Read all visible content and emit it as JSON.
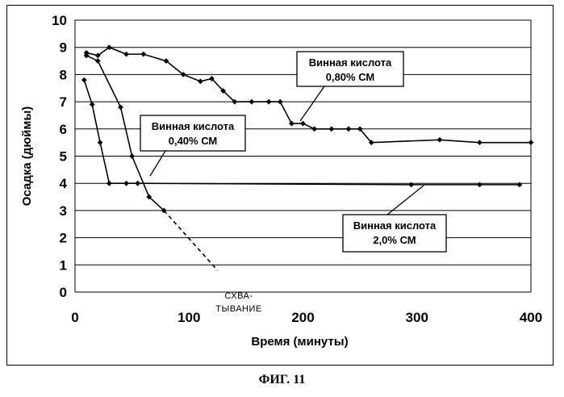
{
  "figure_caption": "ФИГ. 11",
  "chart_data": {
    "type": "line",
    "xlabel": "Время (минуты)",
    "ylabel": "Осадка (дюймы)",
    "xlim": [
      0,
      400
    ],
    "ylim": [
      0,
      10
    ],
    "xticks": [
      0,
      100,
      200,
      300,
      400
    ],
    "yticks": [
      0,
      1,
      2,
      3,
      4,
      5,
      6,
      7,
      8,
      9,
      10
    ],
    "grid": "horizontal",
    "series": [
      {
        "name": "Винная кислота 0,80% СМ",
        "x": [
          10,
          20,
          30,
          45,
          60,
          80,
          95,
          110,
          120,
          130,
          140,
          155,
          170,
          180,
          190,
          200,
          210,
          225,
          240,
          250,
          260,
          320,
          355,
          400
        ],
        "y": [
          8.8,
          8.7,
          9.0,
          8.75,
          8.75,
          8.5,
          8.0,
          7.75,
          7.85,
          7.4,
          7.0,
          7.0,
          7.0,
          7.0,
          6.2,
          6.2,
          6.0,
          6.0,
          6.0,
          6.0,
          5.5,
          5.6,
          5.5,
          5.5
        ]
      },
      {
        "name": "Винная кислота 0,40% СМ",
        "x": [
          10,
          20,
          40,
          50,
          65,
          78
        ],
        "y": [
          8.7,
          8.5,
          6.8,
          5.0,
          3.5,
          3.0
        ]
      },
      {
        "name": "Винная кислота 2,0% СМ",
        "x": [
          8,
          15,
          22,
          30,
          45,
          55,
          295,
          355,
          390
        ],
        "y": [
          7.8,
          6.9,
          5.5,
          4.0,
          4.0,
          4.0,
          3.95,
          3.95,
          3.95
        ]
      }
    ],
    "dashed_extension": {
      "x": [
        78,
        125
      ],
      "y": [
        3.0,
        0.8
      ]
    },
    "callouts": [
      {
        "line1": "Винная кислота",
        "line2": "0,80% СМ"
      },
      {
        "line1": "Винная кислота",
        "line2": "0,40% СМ"
      },
      {
        "line1": "Винная кислота",
        "line2": "2,0% СМ"
      }
    ],
    "annotation": {
      "line1": "СХВА-",
      "line2": "ТЫВАНИЕ"
    }
  }
}
